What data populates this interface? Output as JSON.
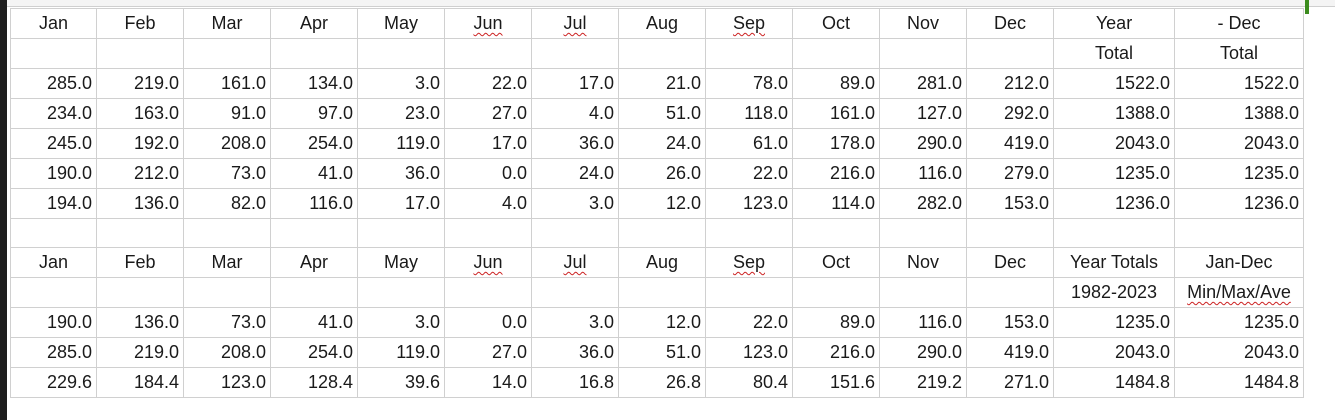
{
  "section1": {
    "header_row1": [
      "Jan",
      "Feb",
      "Mar",
      "Apr",
      "May",
      "Jun",
      "Jul",
      "Aug",
      "Sep",
      "Oct",
      "Nov",
      "Dec",
      "Year",
      "- Dec"
    ],
    "header_row2": [
      "",
      "",
      "",
      "",
      "",
      "",
      "",
      "",
      "",
      "",
      "",
      "",
      "Total",
      "Total"
    ],
    "rows": [
      [
        "285.0",
        "219.0",
        "161.0",
        "134.0",
        "3.0",
        "22.0",
        "17.0",
        "21.0",
        "78.0",
        "89.0",
        "281.0",
        "212.0",
        "1522.0",
        "1522.0"
      ],
      [
        "234.0",
        "163.0",
        "91.0",
        "97.0",
        "23.0",
        "27.0",
        "4.0",
        "51.0",
        "118.0",
        "161.0",
        "127.0",
        "292.0",
        "1388.0",
        "1388.0"
      ],
      [
        "245.0",
        "192.0",
        "208.0",
        "254.0",
        "119.0",
        "17.0",
        "36.0",
        "24.0",
        "61.0",
        "178.0",
        "290.0",
        "419.0",
        "2043.0",
        "2043.0"
      ],
      [
        "190.0",
        "212.0",
        "73.0",
        "41.0",
        "36.0",
        "0.0",
        "24.0",
        "26.0",
        "22.0",
        "216.0",
        "116.0",
        "279.0",
        "1235.0",
        "1235.0"
      ],
      [
        "194.0",
        "136.0",
        "82.0",
        "116.0",
        "17.0",
        "4.0",
        "3.0",
        "12.0",
        "123.0",
        "114.0",
        "282.0",
        "153.0",
        "1236.0",
        "1236.0"
      ]
    ]
  },
  "section2": {
    "header_row1": [
      "Jan",
      "Feb",
      "Mar",
      "Apr",
      "May",
      "Jun",
      "Jul",
      "Aug",
      "Sep",
      "Oct",
      "Nov",
      "Dec",
      "Year Totals",
      "Jan-Dec"
    ],
    "header_row2": [
      "",
      "",
      "",
      "",
      "",
      "",
      "",
      "",
      "",
      "",
      "",
      "",
      "1982-2023",
      "Min/Max/Ave"
    ],
    "rows": [
      [
        "190.0",
        "136.0",
        "73.0",
        "41.0",
        "3.0",
        "0.0",
        "3.0",
        "12.0",
        "22.0",
        "89.0",
        "116.0",
        "153.0",
        "1235.0",
        "1235.0"
      ],
      [
        "285.0",
        "219.0",
        "208.0",
        "254.0",
        "119.0",
        "27.0",
        "36.0",
        "51.0",
        "123.0",
        "216.0",
        "290.0",
        "419.0",
        "2043.0",
        "2043.0"
      ],
      [
        "229.6",
        "184.4",
        "123.0",
        "128.4",
        "39.6",
        "14.0",
        "16.8",
        "26.8",
        "80.4",
        "151.6",
        "219.2",
        "271.0",
        "1484.8",
        "1484.8"
      ]
    ]
  },
  "spellcheck_flagged": [
    "Jun",
    "Jul",
    "Sep",
    "Min/Max/Ave"
  ],
  "colors": {
    "grid": "#d0d0d0",
    "text": "#1a1a1a",
    "spellcheck_underline": "#cc2222",
    "left_bar": "#1e1e1e",
    "marker": "#3c8c1e"
  }
}
